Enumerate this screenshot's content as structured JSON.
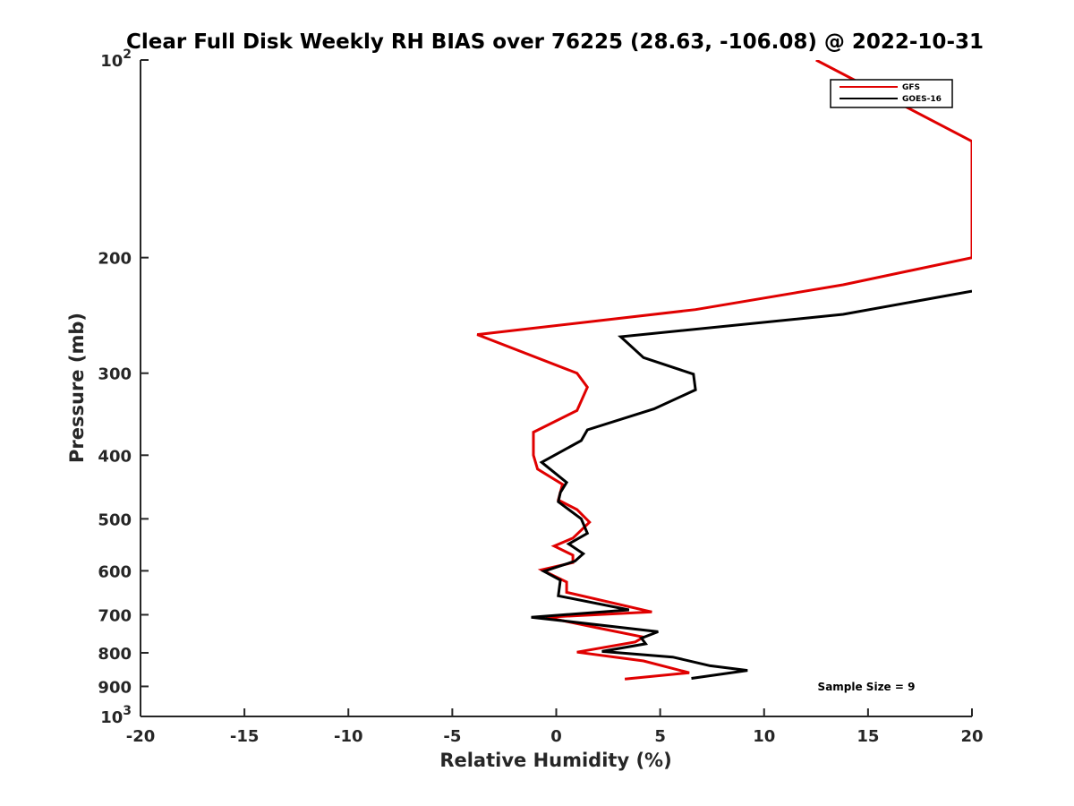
{
  "chart_data": {
    "type": "line",
    "title": "Clear Full Disk Weekly RH BIAS over 76225 (28.63, -106.08) @ 2022-10-31",
    "xlabel": "Relative Humidity (%)",
    "ylabel": "Pressure (mb)",
    "xlim": [
      -20,
      20
    ],
    "ylim": [
      1000,
      100
    ],
    "y_scale": "log",
    "y_reversed": true,
    "x_ticks": [
      "-20",
      "-15",
      "-10",
      "-5",
      "0",
      "5",
      "10",
      "15",
      "20"
    ],
    "x_tick_values": [
      -20,
      -15,
      -10,
      -5,
      0,
      5,
      10,
      15,
      20
    ],
    "y_ticks": [
      {
        "value": 100,
        "base": "10",
        "exp": "2"
      },
      {
        "value": 200,
        "label": "200"
      },
      {
        "value": 300,
        "label": "300"
      },
      {
        "value": 400,
        "label": "400"
      },
      {
        "value": 500,
        "label": "500"
      },
      {
        "value": 600,
        "label": "600"
      },
      {
        "value": 700,
        "label": "700"
      },
      {
        "value": 800,
        "label": "800"
      },
      {
        "value": 900,
        "label": "900"
      },
      {
        "value": 1000,
        "base": "10",
        "exp": "3"
      }
    ],
    "grid": false,
    "legend_position": "top-right",
    "annotation": "Sample Size = 9",
    "series": [
      {
        "name": "GFS",
        "color": "#e00000",
        "points": [
          [
            12.5,
            100
          ],
          [
            20.0,
            133
          ],
          [
            20.0,
            200
          ],
          [
            13.8,
            220
          ],
          [
            6.7,
            240
          ],
          [
            -3.8,
            262
          ],
          [
            1.0,
            300
          ],
          [
            1.5,
            315
          ],
          [
            1.0,
            342
          ],
          [
            -1.1,
            369
          ],
          [
            -1.1,
            400
          ],
          [
            -0.9,
            420
          ],
          [
            0.3,
            443
          ],
          [
            0.1,
            468
          ],
          [
            1.0,
            484
          ],
          [
            1.6,
            506
          ],
          [
            0.8,
            535
          ],
          [
            -0.1,
            550
          ],
          [
            0.8,
            568
          ],
          [
            0.8,
            583
          ],
          [
            -0.7,
            598
          ],
          [
            0.5,
            624
          ],
          [
            0.5,
            647
          ],
          [
            4.6,
            693
          ],
          [
            -0.5,
            706
          ],
          [
            2.0,
            733
          ],
          [
            4.2,
            757
          ],
          [
            3.8,
            770
          ],
          [
            1.0,
            798
          ],
          [
            4.2,
            823
          ],
          [
            6.4,
            858
          ],
          [
            3.3,
            877
          ]
        ]
      },
      {
        "name": "GOES-16",
        "color": "#000000",
        "points": [
          [
            20.0,
            225
          ],
          [
            13.8,
            244
          ],
          [
            3.1,
            264
          ],
          [
            4.2,
            284
          ],
          [
            6.6,
            301
          ],
          [
            6.7,
            318
          ],
          [
            4.7,
            340
          ],
          [
            1.5,
            366
          ],
          [
            1.2,
            380
          ],
          [
            -0.7,
            410
          ],
          [
            0.5,
            440
          ],
          [
            0.2,
            456
          ],
          [
            0.1,
            471
          ],
          [
            1.2,
            500
          ],
          [
            1.5,
            526
          ],
          [
            0.6,
            546
          ],
          [
            1.3,
            565
          ],
          [
            0.9,
            580
          ],
          [
            -0.6,
            601
          ],
          [
            0.2,
            620
          ],
          [
            0.1,
            655
          ],
          [
            3.5,
            688
          ],
          [
            -1.2,
            706
          ],
          [
            4.9,
            743
          ],
          [
            4.1,
            760
          ],
          [
            4.3,
            775
          ],
          [
            2.2,
            796
          ],
          [
            5.6,
            812
          ],
          [
            7.4,
            837
          ],
          [
            9.2,
            851
          ],
          [
            6.5,
            875
          ]
        ]
      }
    ]
  }
}
